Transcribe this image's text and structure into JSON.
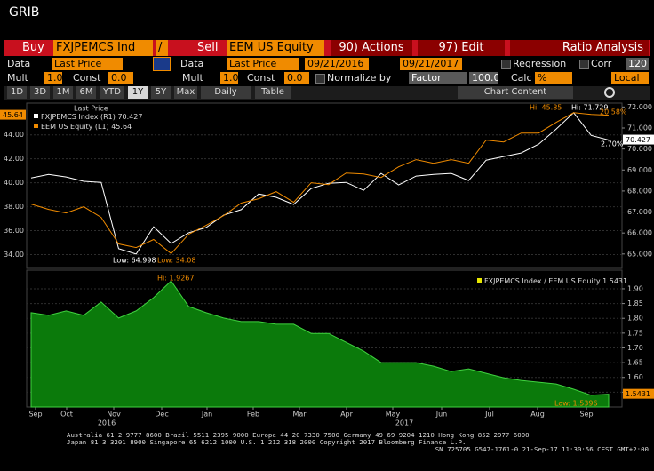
{
  "window_title": "GRIB",
  "toolbar_rows": [
    [
      "Buy",
      "FXJPEMCS Ind",
      "/",
      "Sell",
      "EEM US Equity",
      "90) Actions",
      "97) Edit",
      "Ratio Analysis"
    ],
    [
      "Data",
      "Last Price",
      "Data",
      "Last Price",
      "09/21/2016",
      "09/21/2017",
      "Regression",
      "Corr",
      "120"
    ],
    [
      "Mult",
      "1.0",
      "Const",
      "0.0",
      "Mult",
      "1.0",
      "Const",
      "0.0",
      "Normalize by",
      "Factor",
      "100.0",
      "Calc",
      "%",
      "Local"
    ],
    [
      "1D",
      "3D",
      "1M",
      "6M",
      "YTD",
      "1Y",
      "5Y",
      "Max",
      "Daily",
      "Table",
      "Chart Content"
    ]
  ],
  "chart_data": [
    {
      "type": "line",
      "legend_title": "Last Price",
      "x_labels": [
        "Sep",
        "Oct",
        "Nov",
        "Dec",
        "Jan",
        "Feb",
        "Mar",
        "Apr",
        "May",
        "Jun",
        "Jul",
        "Aug",
        "Sep"
      ],
      "year_labels": [
        "2016",
        "2017"
      ],
      "series": [
        {
          "name": "FXJPEMCS Index (R1)",
          "color": "#ffffff",
          "axis": "y2",
          "values": [
            68.62,
            68.79,
            68.67,
            68.46,
            68.41,
            65.25,
            64.998,
            66.3,
            65.5,
            66.01,
            66.26,
            66.85,
            67.11,
            67.86,
            67.7,
            67.36,
            68.12,
            68.37,
            68.41,
            68.03,
            68.84,
            68.29,
            68.71,
            68.79,
            68.84,
            68.5,
            69.47,
            69.64,
            69.81,
            70.23,
            70.95,
            71.729,
            70.65,
            70.427
          ]
        },
        {
          "name": "EEM US Equity (L1)",
          "color": "#f08b00",
          "values": [
            38.22,
            37.78,
            37.48,
            38.0,
            37.11,
            34.89,
            34.59,
            35.26,
            34.08,
            35.7,
            36.44,
            37.26,
            38.3,
            38.67,
            39.26,
            38.37,
            40.0,
            39.85,
            40.81,
            40.74,
            40.44,
            41.33,
            41.93,
            41.63,
            41.93,
            41.63,
            43.56,
            43.41,
            44.15,
            44.15,
            45.04,
            45.85,
            45.7,
            45.64
          ]
        }
      ],
      "ylim": [
        33,
        46.5
      ],
      "yticks": [
        {
          "value": 34,
          "label": "34.00"
        },
        {
          "value": 36,
          "label": "36.00"
        },
        {
          "value": 38,
          "label": "38.00"
        },
        {
          "value": 40,
          "label": "40.00"
        },
        {
          "value": 42,
          "label": "42.00"
        },
        {
          "value": 44,
          "label": "44.00"
        }
      ],
      "y2lim": [
        64.4,
        72.1
      ],
      "y2ticks": [
        {
          "value": 65,
          "label": "65.000"
        },
        {
          "value": 66,
          "label": "66.000"
        },
        {
          "value": 67,
          "label": "67.000"
        },
        {
          "value": 68,
          "label": "68.000"
        },
        {
          "value": 69,
          "label": "69.000"
        },
        {
          "value": 70,
          "label": "70.000"
        },
        {
          "value": 71,
          "label": "71.000"
        },
        {
          "value": 72,
          "label": "72.000"
        }
      ],
      "grid": true,
      "annotations": [
        "Hi: 45.85",
        "Hi: 71.729",
        "20.58%",
        "2.70%",
        "Low: 64.998",
        "Low: 34.08"
      ]
    },
    {
      "type": "area",
      "series": [
        {
          "name": "FXJPEMCS Index / EEM US Equity",
          "color": "#0b7a0b",
          "values": [
            1.819,
            1.81,
            1.825,
            1.81,
            1.855,
            1.801,
            1.825,
            1.87,
            1.9267,
            1.84,
            1.819,
            1.801,
            1.789,
            1.789,
            1.78,
            1.78,
            1.749,
            1.749,
            1.719,
            1.689,
            1.65,
            1.65,
            1.65,
            1.638,
            1.62,
            1.629,
            1.614,
            1.599,
            1.59,
            1.584,
            1.578,
            1.56,
            1.5396,
            1.5431
          ]
        }
      ],
      "y2lim": [
        1.5,
        1.96
      ],
      "y2ticks": [
        {
          "value": 1.55,
          "label": "1.55"
        },
        {
          "value": 1.6,
          "label": "1.60"
        },
        {
          "value": 1.65,
          "label": "1.65"
        },
        {
          "value": 1.7,
          "label": "1.70"
        },
        {
          "value": 1.75,
          "label": "1.75"
        },
        {
          "value": 1.8,
          "label": "1.80"
        },
        {
          "value": 1.85,
          "label": "1.85"
        },
        {
          "value": 1.9,
          "label": "1.90"
        }
      ],
      "grid": true,
      "annotations": [
        "Hi: 1.9267",
        "Low: 1.5396"
      ]
    }
  ],
  "footer": [
    "Australia 61 2 9777 8600 Brazil 5511 2395 9000 Europe 44 20 7330 7500 Germany 49 69 9204 1210 Hong Kong 852 2977 6000",
    "Japan 81 3 3201 8900       Singapore 65 6212 1000       U.S. 1 212 318 2000        Copyright 2017 Bloomberg Finance L.P.",
    "SN 725705 G547-1761-0 21-Sep-17 11:30:56 CEST  GMT+2:00"
  ]
}
